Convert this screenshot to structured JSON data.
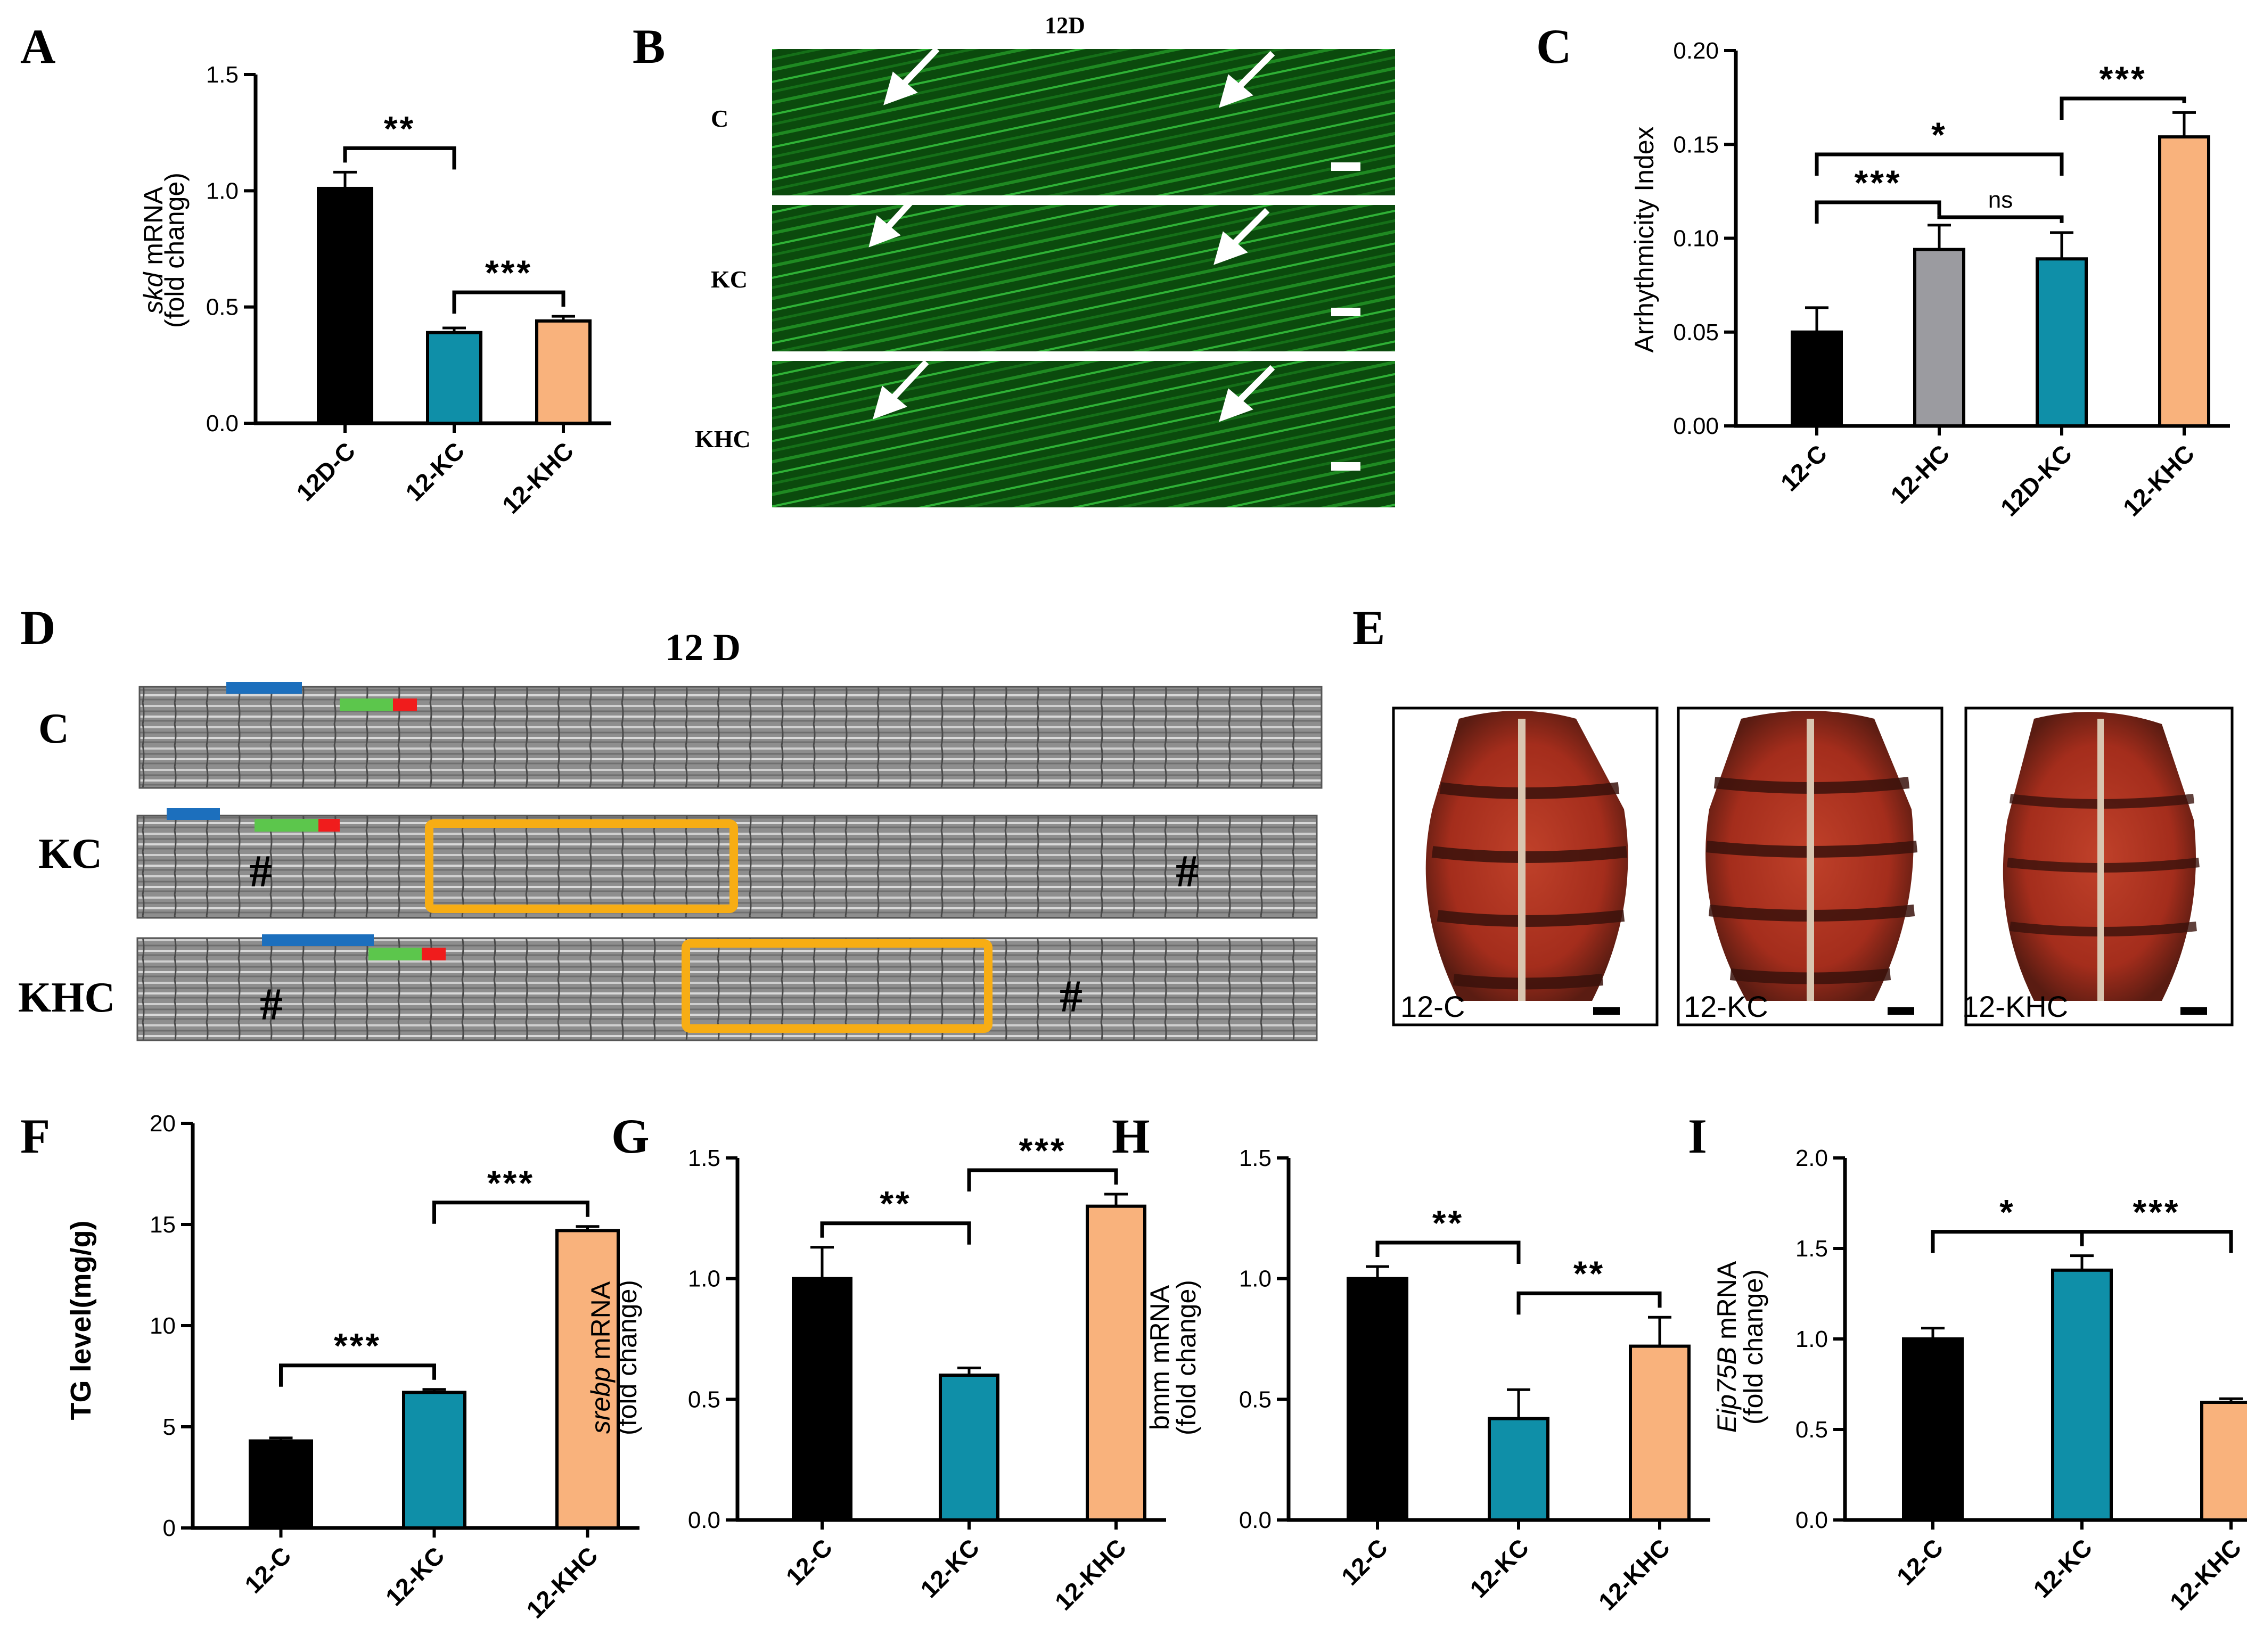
{
  "panels": {
    "A": "A",
    "B": "B",
    "C": "C",
    "D": "D",
    "E": "E",
    "F": "F",
    "G": "G",
    "H": "H",
    "I": "I"
  },
  "panel_b": {
    "title": "12D",
    "rows": [
      "C",
      "KC",
      "KHC"
    ]
  },
  "panel_d": {
    "title": "12 D",
    "rows": [
      "C",
      "KC",
      "KHC"
    ],
    "marker": "#"
  },
  "panel_e": {
    "labels": [
      "12-C",
      "12-KC",
      "12-KHC"
    ]
  },
  "colors": {
    "black": "#000000",
    "grey": "#9b9ba0",
    "teal": "#0f8fa8",
    "orange": "#f9b27c",
    "green_bg": "#0a3d0a",
    "box": "#f7ad14",
    "blue_bar": "#1c6fbd",
    "green_bar": "#5cc64c",
    "red_bar": "#f01c1c"
  },
  "chart_data": [
    {
      "id": "A",
      "type": "bar",
      "categories": [
        "12D-C",
        "12-KC",
        "12-KHC"
      ],
      "values": [
        1.01,
        0.39,
        0.44
      ],
      "errors": [
        0.07,
        0.02,
        0.02
      ],
      "colors": [
        "#000000",
        "#0f8fa8",
        "#f9b27c"
      ],
      "ylabel_italic": "skd",
      "ylabel_rest": " mRNA",
      "ylabel2": "(fold change)",
      "ylim": [
        0,
        1.5
      ],
      "ticks": [
        0.0,
        0.5,
        1.0,
        1.5
      ],
      "tick_labels": [
        "0.0",
        "0.5",
        "1.0",
        "1.5"
      ],
      "sig": [
        {
          "from": 0,
          "to": 1,
          "label": "**"
        },
        {
          "from": 1,
          "to": 2,
          "label": "***"
        }
      ]
    },
    {
      "id": "C",
      "type": "bar",
      "categories": [
        "12-C",
        "12-HC",
        "12D-KC",
        "12-KHC"
      ],
      "values": [
        0.05,
        0.094,
        0.089,
        0.154
      ],
      "errors": [
        0.013,
        0.013,
        0.014,
        0.013
      ],
      "colors": [
        "#000000",
        "#9b9ba0",
        "#0f8fa8",
        "#f9b27c"
      ],
      "ylabel": "Arrhythmicity Index",
      "ylim": [
        0,
        0.2
      ],
      "ticks": [
        0,
        0.05,
        0.1,
        0.15,
        0.2
      ],
      "tick_labels": [
        "0.00",
        "0.05",
        "0.10",
        "0.15",
        "0.20"
      ],
      "sig": [
        {
          "from": 0,
          "to": 1,
          "label": "***"
        },
        {
          "from": 1,
          "to": 2,
          "label": "ns"
        },
        {
          "from": 0,
          "to": 2,
          "label": "*"
        },
        {
          "from": 2,
          "to": 3,
          "label": "***"
        }
      ]
    },
    {
      "id": "F",
      "type": "bar",
      "categories": [
        "12-C",
        "12-KC",
        "12-KHC"
      ],
      "values": [
        4.3,
        6.7,
        14.7
      ],
      "errors": [
        0.15,
        0.15,
        0.2
      ],
      "colors": [
        "#000000",
        "#0f8fa8",
        "#f9b27c"
      ],
      "ylabel": "TG level(mg/g)",
      "ylim": [
        0,
        20
      ],
      "ticks": [
        0,
        5,
        10,
        15,
        20
      ],
      "tick_labels": [
        "0",
        "5",
        "10",
        "15",
        "20"
      ],
      "sig": [
        {
          "from": 0,
          "to": 1,
          "label": "***"
        },
        {
          "from": 1,
          "to": 2,
          "label": "***"
        }
      ]
    },
    {
      "id": "G",
      "type": "bar",
      "categories": [
        "12-C",
        "12-KC",
        "12-KHC"
      ],
      "values": [
        1.0,
        0.6,
        1.3
      ],
      "errors": [
        0.13,
        0.03,
        0.05
      ],
      "colors": [
        "#000000",
        "#0f8fa8",
        "#f9b27c"
      ],
      "ylabel_italic": "srebp",
      "ylabel_rest": " mRNA",
      "ylabel2": "(fold change)",
      "ylim": [
        0,
        1.5
      ],
      "ticks": [
        0.0,
        0.5,
        1.0,
        1.5
      ],
      "tick_labels": [
        "0.0",
        "0.5",
        "1.0",
        "1.5"
      ],
      "sig": [
        {
          "from": 0,
          "to": 1,
          "label": "**"
        },
        {
          "from": 1,
          "to": 2,
          "label": "***"
        }
      ]
    },
    {
      "id": "H",
      "type": "bar",
      "categories": [
        "12-C",
        "12-KC",
        "12-KHC"
      ],
      "values": [
        1.0,
        0.42,
        0.72
      ],
      "errors": [
        0.05,
        0.12,
        0.12
      ],
      "colors": [
        "#000000",
        "#0f8fa8",
        "#f9b27c"
      ],
      "ylabel": "bmm mRNA",
      "ylabel2": "(fold change)",
      "ylim": [
        0,
        1.5
      ],
      "ticks": [
        0.0,
        0.5,
        1.0,
        1.5
      ],
      "tick_labels": [
        "0.0",
        "0.5",
        "1.0",
        "1.5"
      ],
      "sig": [
        {
          "from": 0,
          "to": 1,
          "label": "**"
        },
        {
          "from": 1,
          "to": 2,
          "label": "**"
        }
      ]
    },
    {
      "id": "I",
      "type": "bar",
      "categories": [
        "12-C",
        "12-KC",
        "12-KHC"
      ],
      "values": [
        1.0,
        1.38,
        0.65
      ],
      "errors": [
        0.06,
        0.08,
        0.02
      ],
      "colors": [
        "#000000",
        "#0f8fa8",
        "#f9b27c"
      ],
      "ylabel_italic": "Eip75B",
      "ylabel_rest": " mRNA",
      "ylabel2": "(fold change)",
      "ylim": [
        0,
        2.0
      ],
      "ticks": [
        0.0,
        0.5,
        1.0,
        1.5,
        2.0
      ],
      "tick_labels": [
        "0.0",
        "0.5",
        "1.0",
        "1.5",
        "2.0"
      ],
      "sig": [
        {
          "from": 0,
          "to": 1,
          "label": "*"
        },
        {
          "from": 1,
          "to": 2,
          "label": "***"
        }
      ]
    }
  ]
}
